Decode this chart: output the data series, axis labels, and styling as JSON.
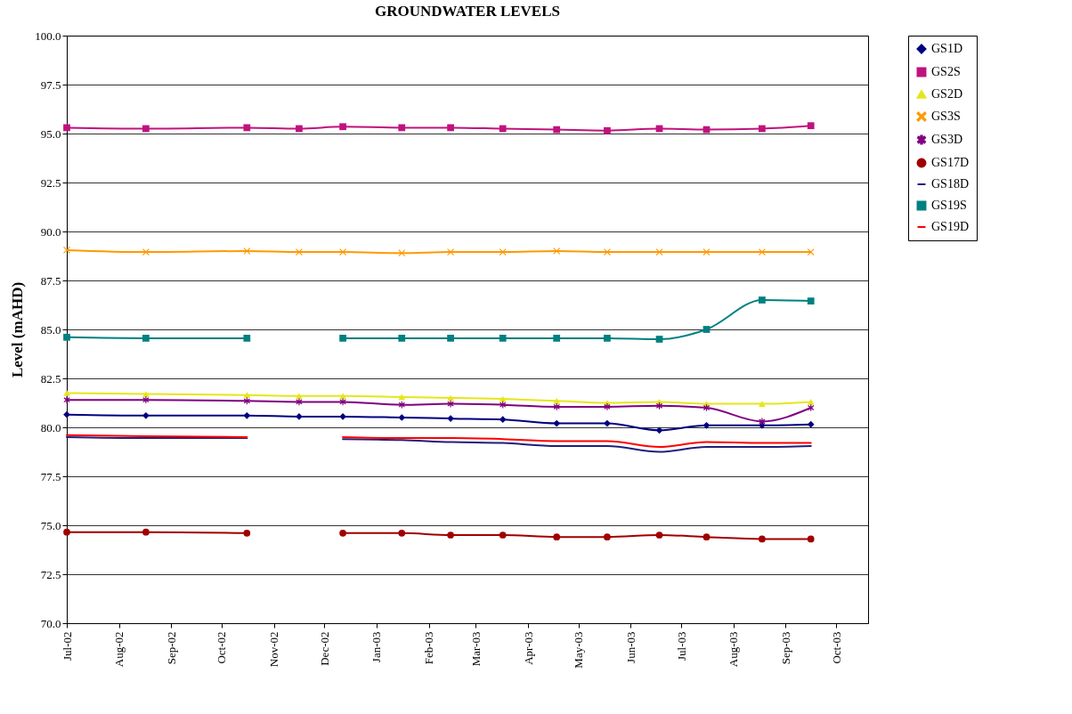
{
  "chart_data": {
    "type": "line",
    "title": "GROUNDWATER LEVELS",
    "ylabel": "Level (mAHD)",
    "x": [
      "2002-07-01",
      "2002-08-17",
      "2002-10-16",
      "2002-11-16",
      "2002-12-12",
      "2003-01-16",
      "2003-02-14",
      "2003-03-17",
      "2003-04-18",
      "2003-05-18",
      "2003-06-18",
      "2003-07-16",
      "2003-08-18",
      "2003-09-16"
    ],
    "series": [
      {
        "name": "GS1D",
        "color": "#000080",
        "marker": "diamond",
        "values": [
          80.65,
          80.6,
          80.6,
          80.55,
          80.55,
          80.5,
          80.45,
          80.4,
          80.2,
          80.2,
          79.85,
          80.1,
          80.1,
          80.15
        ]
      },
      {
        "name": "GS2S",
        "color": "#c0127f",
        "marker": "square",
        "values": [
          95.3,
          95.25,
          95.3,
          95.25,
          95.35,
          95.3,
          95.3,
          95.25,
          95.2,
          95.15,
          95.25,
          95.2,
          95.25,
          95.4
        ]
      },
      {
        "name": "GS2D",
        "color": "#e6e619",
        "marker": "triangle",
        "values": [
          81.75,
          81.7,
          81.65,
          81.6,
          81.6,
          81.55,
          81.5,
          81.45,
          81.35,
          81.25,
          81.3,
          81.2,
          81.2,
          81.3
        ]
      },
      {
        "name": "GS3S",
        "color": "#ff9900",
        "marker": "cross",
        "values": [
          89.05,
          88.95,
          89.0,
          88.95,
          88.95,
          88.9,
          88.95,
          88.95,
          89.0,
          88.95,
          88.95,
          88.95,
          88.95,
          88.95
        ]
      },
      {
        "name": "GS3D",
        "color": "#800080",
        "marker": "star",
        "values": [
          81.4,
          81.4,
          81.35,
          81.3,
          81.3,
          81.15,
          81.2,
          81.15,
          81.05,
          81.05,
          81.1,
          81.0,
          80.3,
          81.0
        ]
      },
      {
        "name": "GS17D",
        "color": "#a00000",
        "marker": "circle",
        "values": [
          74.65,
          74.65,
          74.6,
          null,
          74.6,
          74.6,
          74.5,
          74.5,
          74.4,
          74.4,
          74.5,
          74.4,
          74.3,
          74.3
        ]
      },
      {
        "name": "GS18D",
        "color": "#1f1f7a",
        "marker": "none",
        "values": [
          79.5,
          79.45,
          79.45,
          null,
          79.4,
          79.35,
          79.25,
          79.2,
          79.05,
          79.05,
          78.75,
          79.0,
          79.0,
          79.05
        ]
      },
      {
        "name": "GS19S",
        "color": "#008080",
        "marker": "square",
        "values": [
          84.6,
          84.55,
          84.55,
          null,
          84.55,
          84.55,
          84.55,
          84.55,
          84.55,
          84.55,
          84.5,
          85.0,
          86.5,
          86.45
        ]
      },
      {
        "name": "GS19D",
        "color": "#ff0000",
        "marker": "none",
        "values": [
          79.6,
          79.55,
          79.5,
          null,
          79.5,
          79.45,
          79.45,
          79.4,
          79.3,
          79.3,
          79.0,
          79.25,
          79.2,
          79.2
        ]
      }
    ],
    "xlim": [
      "2002-07-01",
      "2003-10-20"
    ],
    "xticks": [
      {
        "value": "2002-07",
        "label": "Jul-02"
      },
      {
        "value": "2002-08",
        "label": "Aug-02"
      },
      {
        "value": "2002-09",
        "label": "Sep-02"
      },
      {
        "value": "2002-10",
        "label": "Oct-02"
      },
      {
        "value": "2002-11",
        "label": "Nov-02"
      },
      {
        "value": "2002-12",
        "label": "Dec-02"
      },
      {
        "value": "2003-01",
        "label": "Jan-03"
      },
      {
        "value": "2003-02",
        "label": "Feb-03"
      },
      {
        "value": "2003-03",
        "label": "Mar-03"
      },
      {
        "value": "2003-04",
        "label": "Apr-03"
      },
      {
        "value": "2003-05",
        "label": "May-03"
      },
      {
        "value": "2003-06",
        "label": "Jun-03"
      },
      {
        "value": "2003-07",
        "label": "Jul-03"
      },
      {
        "value": "2003-08",
        "label": "Aug-03"
      },
      {
        "value": "2003-09",
        "label": "Sep-03"
      },
      {
        "value": "2003-10",
        "label": "Oct-03"
      }
    ],
    "ylim": [
      70,
      100
    ],
    "yticks": [
      {
        "value": 70,
        "label": "70.0"
      },
      {
        "value": 72.5,
        "label": "72.5"
      },
      {
        "value": 75,
        "label": "75.0"
      },
      {
        "value": 77.5,
        "label": "77.5"
      },
      {
        "value": 80,
        "label": "80.0"
      },
      {
        "value": 82.5,
        "label": "82.5"
      },
      {
        "value": 85,
        "label": "85.0"
      },
      {
        "value": 87.5,
        "label": "87.5"
      },
      {
        "value": 90,
        "label": "90.0"
      },
      {
        "value": 92.5,
        "label": "92.5"
      },
      {
        "value": 95,
        "label": "95.0"
      },
      {
        "value": 97.5,
        "label": "97.5"
      },
      {
        "value": 100,
        "label": "100.0"
      }
    ],
    "grid": "y",
    "legend": "right"
  }
}
